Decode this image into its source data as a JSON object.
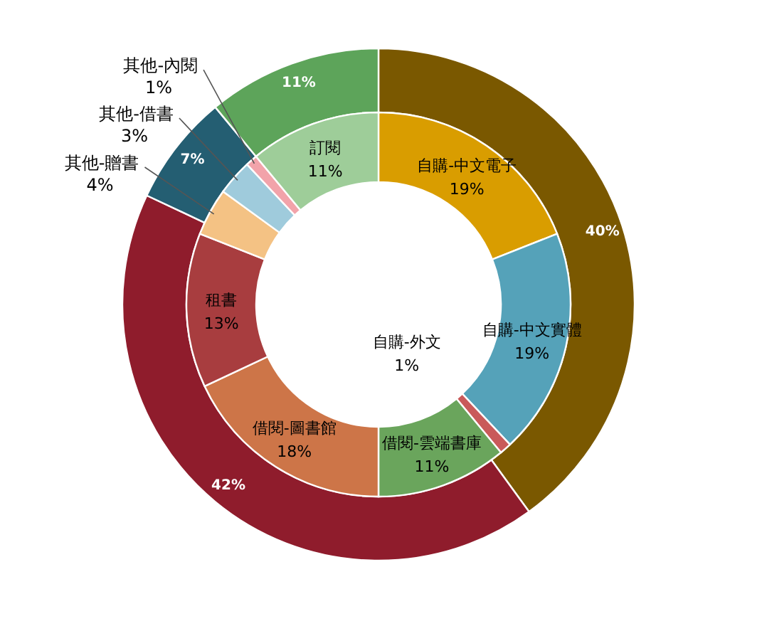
{
  "chart_data": [
    {
      "type": "donut",
      "categories": [
        null,
        null,
        null,
        null
      ],
      "values": [
        40,
        42,
        7,
        11
      ],
      "colors": [
        "#7a5800",
        "#8f1c2c",
        "#245e72",
        "#5da45a"
      ],
      "value_labels": [
        "40%",
        "42%",
        "7%",
        "11%"
      ]
    },
    {
      "type": "donut",
      "categories": [
        "自購-中文電子",
        "自購-中文實體",
        "自購-外文",
        "借閱-雲端書庫",
        "借閱-圖書館",
        "租書",
        "其他-贈書",
        "其他-借書",
        "其他-內閱",
        "訂閱"
      ],
      "values": [
        19,
        19,
        1,
        11,
        18,
        13,
        4,
        3,
        1,
        11
      ],
      "colors": [
        "#d99d00",
        "#55a2b9",
        "#c95a5a",
        "#6aa55c",
        "#cd7548",
        "#a83d3f",
        "#f4c284",
        "#9fcbdc",
        "#f2a3aa",
        "#9ecd99"
      ],
      "value_labels": [
        "19%",
        "19%",
        "1%",
        "11%",
        "18%",
        "13%",
        "4%",
        "3%",
        "1%",
        "11%"
      ]
    }
  ]
}
